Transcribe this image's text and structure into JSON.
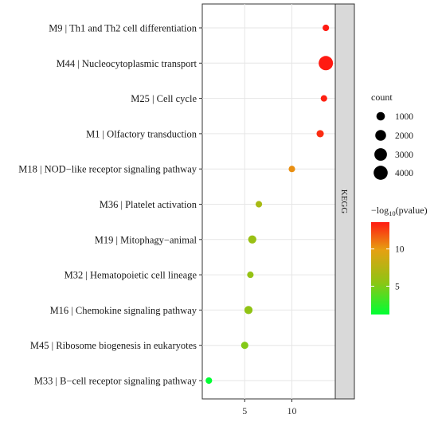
{
  "chart_data": {
    "type": "scatter",
    "title": "",
    "xlabel": "",
    "ylabel": "",
    "categories": [
      "M9 | Th1 and Th2 cell differentiation",
      "M44 | Nucleocytoplasmic transport",
      "M25 | Cell cycle",
      "M1 | Olfactory transduction",
      "M18 | NOD−like receptor signaling pathway",
      "M36 | Platelet activation",
      "M19 | Mitophagy−animal",
      "M32 | Hematopoietic cell lineage",
      "M16 | Chemokine signaling pathway",
      "M45 | Ribosome biogenesis in eukaryotes",
      "M33 | B−cell receptor signaling pathway"
    ],
    "x_values": [
      13.6,
      13.6,
      13.4,
      13.0,
      10.0,
      6.5,
      5.8,
      5.6,
      5.4,
      5.0,
      1.2
    ],
    "pvalue_log10": [
      13.6,
      13.6,
      13.4,
      13.0,
      10.0,
      6.5,
      5.8,
      5.6,
      5.4,
      5.0,
      1.2
    ],
    "counts": [
      420,
      4200,
      420,
      620,
      420,
      420,
      900,
      420,
      900,
      620,
      420
    ],
    "xticks": [
      5,
      10
    ],
    "xlim": [
      0.5,
      14.6
    ],
    "grid": true,
    "facet_label": "KEGG",
    "legend_position": "right",
    "size_legend": {
      "title": "count",
      "values": [
        1000,
        2000,
        3000,
        4000
      ],
      "labels": [
        "1000",
        "2000",
        "3000",
        "4000"
      ]
    },
    "color_legend": {
      "title_prefix": "−log",
      "title_sub": "10",
      "title_suffix": "(pvalue)",
      "ticks": [
        5,
        10
      ],
      "tick_labels": [
        "5",
        "10"
      ],
      "range": [
        1.2,
        13.6
      ],
      "colors": [
        "#00ff33",
        "#8fc414",
        "#e6a012",
        "#ff1a12"
      ]
    }
  }
}
